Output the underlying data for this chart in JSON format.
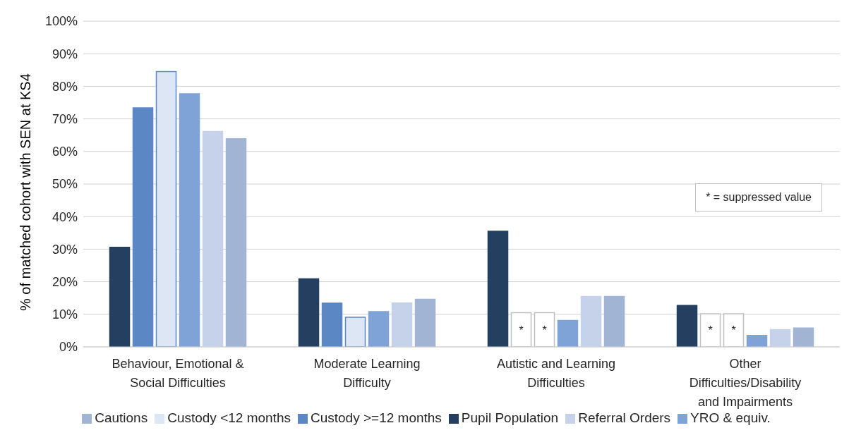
{
  "chart_data": {
    "type": "bar",
    "ylabel": "% of matched cohort with SEN at KS4",
    "categories": [
      "Behaviour, Emotional & Social Difficulties",
      "Moderate Learning Difficulty",
      "Autistic and Learning Difficulties",
      "Other Difficulties/Disability and Impairments"
    ],
    "series": [
      {
        "name": "Pupil Population",
        "color": "#243f60",
        "values": [
          30.6,
          20.9,
          35.5,
          12.7
        ]
      },
      {
        "name": "Custody >=12 months",
        "color": "#5b87c5",
        "values": [
          73.4,
          13.4,
          10.5,
          10.2
        ],
        "colors": [
          "#5b87c5",
          "#5b87c5",
          "#ffffff",
          "#ffffff"
        ],
        "value_labels": [
          null,
          null,
          "*",
          "*"
        ]
      },
      {
        "name": "Custody <12 months",
        "color": "#dce6f4",
        "values": [
          84.5,
          9.1,
          10.5,
          10.2
        ],
        "colors": [
          "#dce6f4",
          "#dce6f4",
          "#ffffff",
          "#ffffff"
        ],
        "value_labels": [
          null,
          null,
          "*",
          "*"
        ]
      },
      {
        "name": "YRO & equiv.",
        "color": "#7fa3d6",
        "values": [
          77.7,
          10.8,
          8.1,
          3.5
        ]
      },
      {
        "name": "Referral Orders",
        "color": "#c5d2ea",
        "values": [
          66.1,
          13.5,
          15.5,
          5.3
        ]
      },
      {
        "name": "Cautions",
        "color": "#a2b4d4",
        "values": [
          63.9,
          14.6,
          15.5,
          5.8
        ]
      }
    ],
    "ylim": [
      0,
      100
    ],
    "yticks": [
      {
        "value": 0,
        "label": "0%"
      },
      {
        "value": 10,
        "label": "10%"
      },
      {
        "value": 20,
        "label": "20%"
      },
      {
        "value": 30,
        "label": "30%"
      },
      {
        "value": 40,
        "label": "40%"
      },
      {
        "value": 50,
        "label": "50%"
      },
      {
        "value": 60,
        "label": "60%"
      },
      {
        "value": 70,
        "label": "70%"
      },
      {
        "value": 80,
        "label": "80%"
      },
      {
        "value": 90,
        "label": "90%"
      },
      {
        "value": 100,
        "label": "100%"
      }
    ],
    "grid": "y",
    "legend": "bottom",
    "annotations": [
      "* = suppressed value"
    ]
  }
}
